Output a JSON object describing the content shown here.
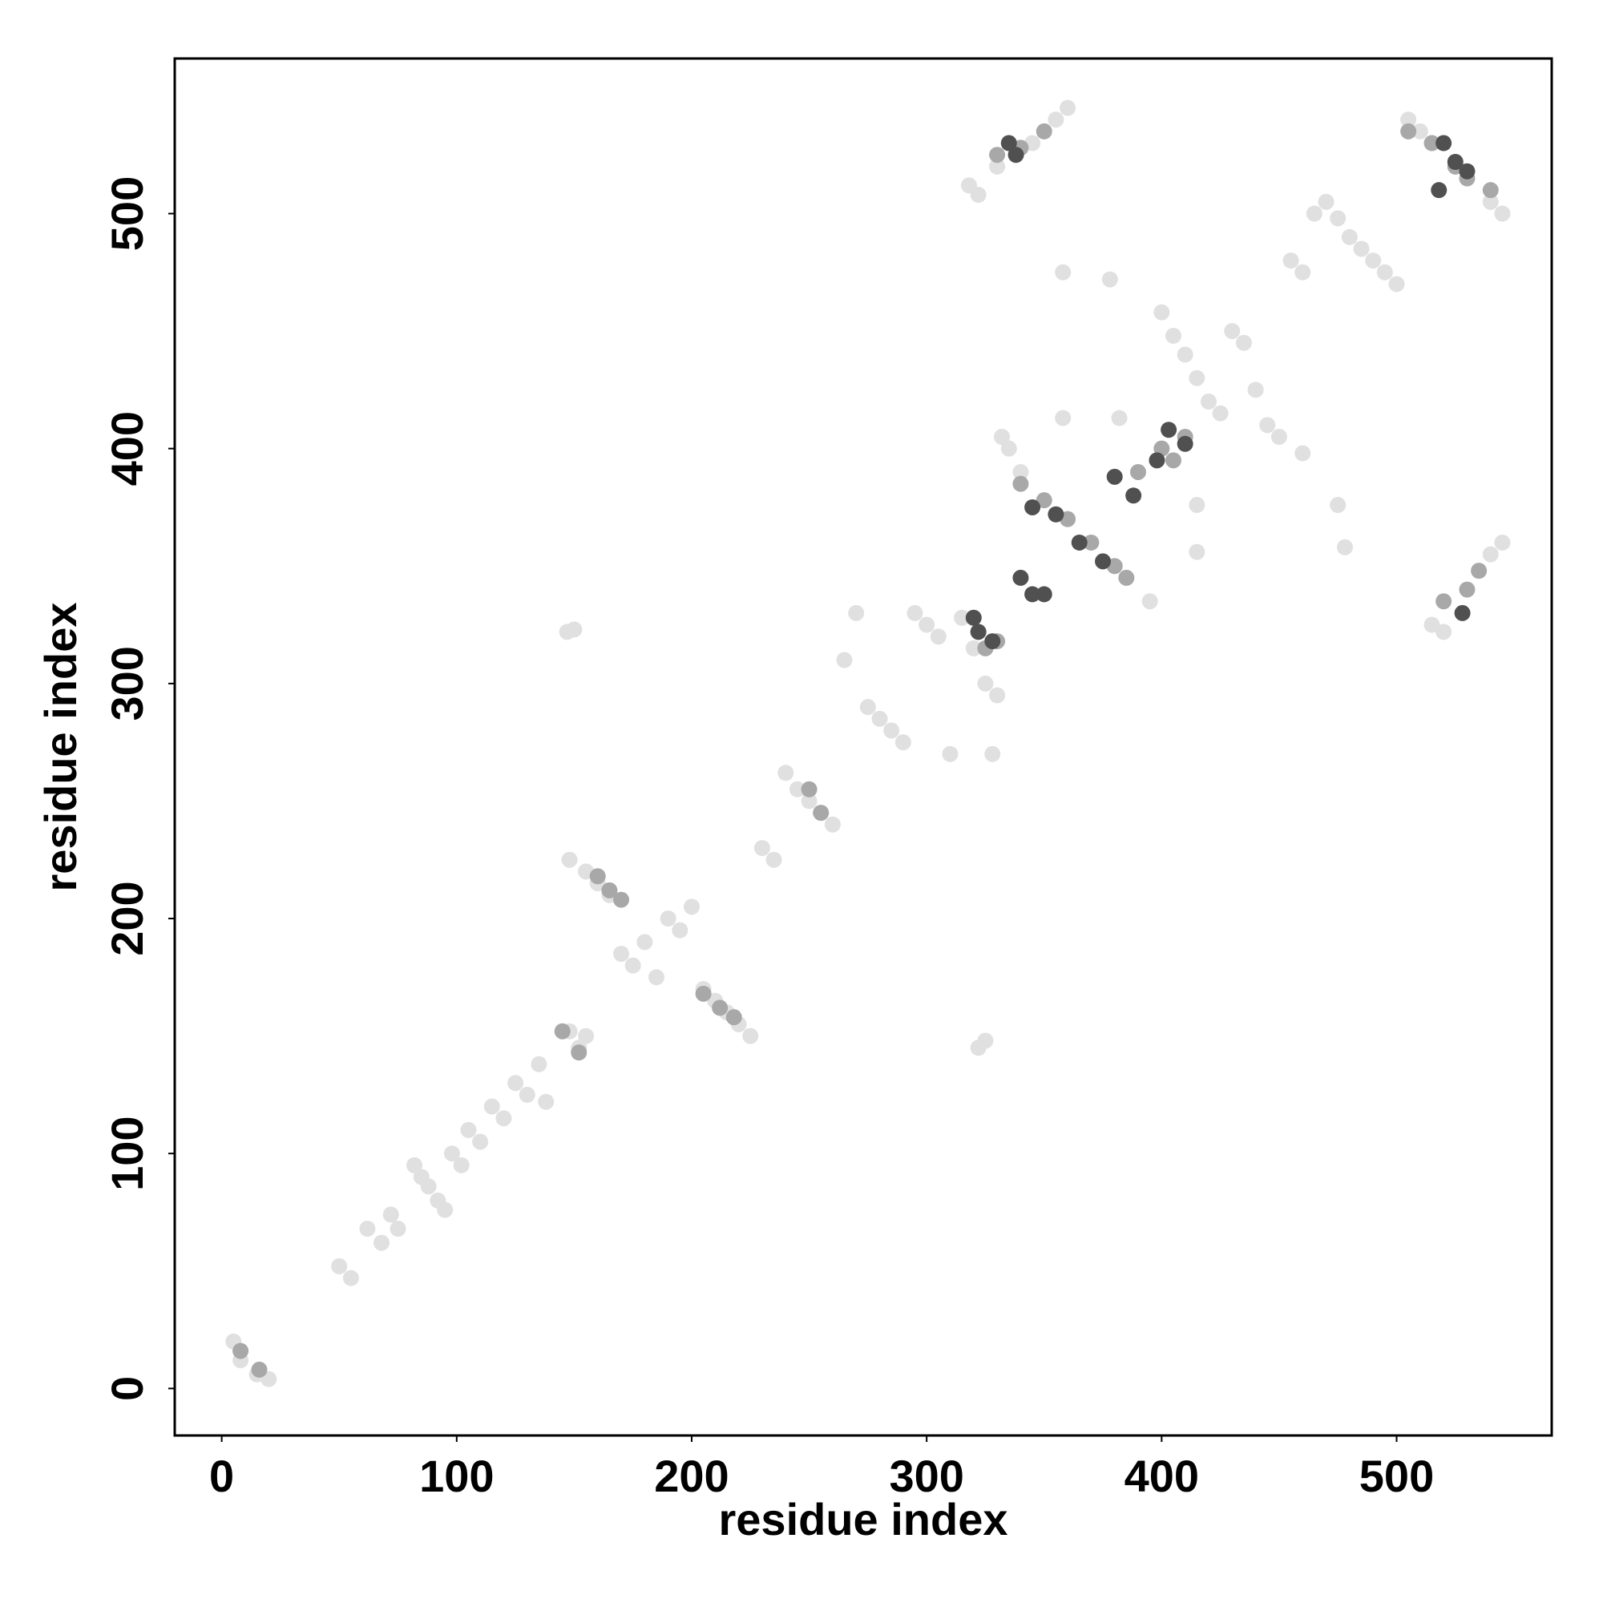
{
  "chart_data": {
    "type": "scatter",
    "x_label": "residue index",
    "y_label": "residue index",
    "xlim": [
      -20,
      566
    ],
    "ylim": [
      -20,
      566
    ],
    "xticks": [
      0,
      100,
      200,
      300,
      400,
      500
    ],
    "yticks": [
      0,
      100,
      200,
      300,
      400,
      500
    ],
    "grid": false,
    "series": [
      {
        "color": "#e0e0e0",
        "x": [
          5,
          8,
          15,
          20,
          50,
          55,
          62,
          68,
          72,
          75,
          82,
          85,
          88,
          92,
          95,
          98,
          102,
          105,
          110,
          115,
          120,
          125,
          130,
          135,
          138,
          148,
          152,
          155,
          147,
          150,
          148,
          155,
          160,
          165,
          170,
          175,
          180,
          185,
          190,
          195,
          200,
          205,
          210,
          215,
          220,
          225,
          230,
          235,
          240,
          245,
          250,
          255,
          260,
          265,
          270,
          275,
          280,
          285,
          290,
          295,
          300,
          305,
          310,
          315,
          320,
          325,
          330,
          322,
          325,
          328,
          332,
          335,
          340,
          318,
          322,
          330,
          345,
          355,
          360,
          358,
          358,
          378,
          382,
          395,
          400,
          405,
          410,
          415,
          420,
          425,
          430,
          435,
          440,
          445,
          450,
          455,
          460,
          465,
          470,
          475,
          480,
          485,
          490,
          495,
          500,
          475,
          478,
          460,
          415,
          415,
          505,
          510,
          515,
          520,
          540,
          545,
          545,
          540
        ],
        "values": [
          20,
          12,
          6,
          4,
          52,
          47,
          68,
          62,
          74,
          68,
          95,
          90,
          86,
          80,
          76,
          100,
          95,
          110,
          105,
          120,
          115,
          130,
          125,
          138,
          122,
          152,
          145,
          150,
          322,
          323,
          225,
          220,
          215,
          210,
          185,
          180,
          190,
          175,
          200,
          195,
          205,
          170,
          165,
          160,
          155,
          150,
          230,
          225,
          262,
          255,
          250,
          245,
          240,
          310,
          330,
          290,
          285,
          280,
          275,
          330,
          325,
          320,
          270,
          328,
          315,
          300,
          295,
          145,
          148,
          270,
          405,
          400,
          390,
          512,
          508,
          520,
          530,
          540,
          545,
          475,
          413,
          472,
          413,
          335,
          458,
          448,
          440,
          430,
          420,
          415,
          450,
          445,
          425,
          410,
          405,
          480,
          475,
          500,
          505,
          498,
          490,
          485,
          480,
          475,
          470,
          376,
          358,
          398,
          376,
          356,
          540,
          535,
          325,
          322,
          355,
          360,
          500,
          505
        ]
      },
      {
        "color": "#a8a8a8",
        "x": [
          8,
          16,
          145,
          152,
          160,
          165,
          170,
          205,
          212,
          218,
          250,
          255,
          325,
          330,
          340,
          350,
          360,
          370,
          380,
          385,
          390,
          400,
          405,
          410,
          330,
          340,
          350,
          505,
          515,
          525,
          530,
          540,
          520,
          530,
          535
        ],
        "values": [
          16,
          8,
          152,
          143,
          218,
          212,
          208,
          168,
          162,
          158,
          255,
          245,
          315,
          318,
          385,
          378,
          370,
          360,
          350,
          345,
          390,
          400,
          395,
          405,
          525,
          528,
          535,
          535,
          530,
          520,
          515,
          510,
          335,
          340,
          348
        ]
      },
      {
        "color": "#505050",
        "x": [
          320,
          322,
          328,
          340,
          345,
          350,
          338,
          335,
          345,
          355,
          365,
          375,
          380,
          388,
          398,
          403,
          410,
          518,
          520,
          525,
          530,
          528
        ],
        "values": [
          328,
          322,
          318,
          345,
          338,
          338,
          525,
          530,
          375,
          372,
          360,
          352,
          388,
          380,
          395,
          408,
          402,
          510,
          530,
          522,
          518,
          330
        ]
      }
    ]
  }
}
